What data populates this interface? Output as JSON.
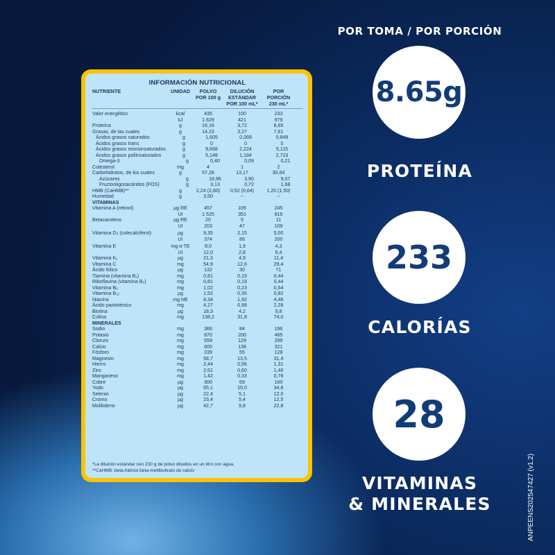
{
  "table": {
    "title": "INFORMACIÓN NUTRICIONAL",
    "headers": {
      "nutriente": "NUTRIENTE",
      "unidad": "UNIDAD",
      "polvo": [
        "POLVO",
        "POR 100 g"
      ],
      "dilucion": [
        "DILUCIÓN ESTÁNDAR",
        "POR 100 mL*"
      ],
      "porcion": [
        "POR PORCIÓN",
        "230 mL*"
      ]
    },
    "rows": [
      {
        "n": "Valor energético",
        "u": "kcal",
        "p": "435",
        "d": "100",
        "s": "233",
        "gap": true
      },
      {
        "n": "",
        "u": "kJ",
        "p": "1 829",
        "d": "421",
        "s": "979"
      },
      {
        "n": "Proteína",
        "u": "g",
        "p": "16,16",
        "d": "3,72",
        "s": "8,65"
      },
      {
        "n": "Grasas, de las cuales",
        "u": "g",
        "p": "14,23",
        "d": "3,27",
        "s": "7,61"
      },
      {
        "n": "Ácidos grasos saturados",
        "u": "g",
        "p": "1,605",
        "d": "0,369",
        "s": "0,849",
        "ind": 1
      },
      {
        "n": "Ácidos grasos trans",
        "u": "g",
        "p": "0",
        "d": "0",
        "s": "0",
        "ind": 1
      },
      {
        "n": "Ácidos grasos monoinsaturados",
        "u": "g",
        "p": "9,668",
        "d": "2,224",
        "s": "5,115",
        "ind": 1
      },
      {
        "n": "Ácidos grasos poliinsaturados",
        "u": "g",
        "p": "5,148",
        "d": "1,184",
        "s": "2,723",
        "ind": 1
      },
      {
        "n": "Omega-3",
        "u": "g",
        "p": "0,40",
        "d": "0,09",
        "s": "0,21",
        "ind": 2
      },
      {
        "n": "Colesterol",
        "u": "mg",
        "p": "4",
        "d": "1",
        "s": "2"
      },
      {
        "n": "Carbohidratos, de los cuales",
        "u": "g",
        "p": "57,28",
        "d": "13,17",
        "s": "30,64"
      },
      {
        "n": "Azúcares",
        "u": "g",
        "p": "16,96",
        "d": "3,90",
        "s": "9,07",
        "ind": 2
      },
      {
        "n": "Fructooligosacáridos (FOS)",
        "u": "g",
        "p": "3,13",
        "d": "0,72",
        "s": "1,68",
        "ind": 2
      },
      {
        "n": "HMB (CaHMB)**",
        "u": "g",
        "p": "2,24 (2,80)",
        "d": "0,52 (0,64)",
        "s": "1,20 (1,50)"
      },
      {
        "n": "Humedad",
        "u": "g",
        "p": "3,50",
        "d": "--",
        "s": "--"
      },
      {
        "n": "VITAMINAS",
        "u": "",
        "p": "",
        "d": "",
        "s": "",
        "sec": true
      },
      {
        "n": "Vitamina A (retinol)",
        "u": "µg RE",
        "p": "457",
        "d": "105",
        "s": "245"
      },
      {
        "n": "",
        "u": "UI",
        "p": "1 525",
        "d": "351",
        "s": "816"
      },
      {
        "n": "Betacaroteno",
        "u": "µg RE",
        "p": "20",
        "d": "5",
        "s": "11"
      },
      {
        "n": "",
        "u": "UI",
        "p": "203",
        "d": "47",
        "s": "109"
      },
      {
        "n": "Vitamina D₃ (colecalciferol)",
        "u": "µg",
        "p": "9,35",
        "d": "2,15",
        "s": "5,00",
        "gap": true
      },
      {
        "n": "",
        "u": "UI",
        "p": "374",
        "d": "86",
        "s": "200"
      },
      {
        "n": "Vitamina E",
        "u": "mg α-TE",
        "p": "8,0",
        "d": "1,9",
        "s": "4,3",
        "gap": true
      },
      {
        "n": "",
        "u": "UI",
        "p": "12,0",
        "d": "2,8",
        "s": "6,4"
      },
      {
        "n": "Vitamina K₁",
        "u": "µg",
        "p": "21,3",
        "d": "4,9",
        "s": "11,4"
      },
      {
        "n": "Vitamina C",
        "u": "mg",
        "p": "54,9",
        "d": "12,6",
        "s": "29,4"
      },
      {
        "n": "Ácido fólico",
        "u": "µg",
        "p": "132",
        "d": "30",
        "s": "71"
      },
      {
        "n": "Tiamina (vitamina B₁)",
        "u": "mg",
        "p": "0,81",
        "d": "0,19",
        "s": "0,44"
      },
      {
        "n": "Riboflavina (vitamina B₂)",
        "u": "mg",
        "p": "0,81",
        "d": "0,19",
        "s": "0,44"
      },
      {
        "n": "Vitamina B₆",
        "u": "mg",
        "p": "1,02",
        "d": "0,23",
        "s": "0,54"
      },
      {
        "n": "Vitamina B₁₂",
        "u": "µg",
        "p": "1,52",
        "d": "0,35",
        "s": "0,82"
      },
      {
        "n": "Niacina",
        "u": "mg NE",
        "p": "8,34",
        "d": "1,92",
        "s": "4,46"
      },
      {
        "n": "Ácido pantoténico",
        "u": "mg",
        "p": "4,27",
        "d": "0,98",
        "s": "2,28"
      },
      {
        "n": "Biotina",
        "u": "µg",
        "p": "18,3",
        "d": "4,2",
        "s": "9,8"
      },
      {
        "n": "Colina",
        "u": "mg",
        "p": "138,2",
        "d": "31,8",
        "s": "74,0"
      },
      {
        "n": "MINERALES",
        "u": "",
        "p": "",
        "d": "",
        "s": "",
        "sec": true
      },
      {
        "n": "Sodio",
        "u": "mg",
        "p": "366",
        "d": "84",
        "s": "196"
      },
      {
        "n": "Potasio",
        "u": "mg",
        "p": "870",
        "d": "200",
        "s": "465"
      },
      {
        "n": "Cloruro",
        "u": "mg",
        "p": "559",
        "d": "129",
        "s": "299"
      },
      {
        "n": "Calcio",
        "u": "mg",
        "p": "600",
        "d": "138",
        "s": "321"
      },
      {
        "n": "Fósforo",
        "u": "mg",
        "p": "239",
        "d": "55",
        "s": "128"
      },
      {
        "n": "Magnesio",
        "u": "mg",
        "p": "58,7",
        "d": "13,5",
        "s": "31,4"
      },
      {
        "n": "Hierro",
        "u": "mg",
        "p": "2,44",
        "d": "0,56",
        "s": "1,31"
      },
      {
        "n": "Zinc",
        "u": "mg",
        "p": "2,61",
        "d": "0,60",
        "s": "1,40"
      },
      {
        "n": "Manganeso",
        "u": "mg",
        "p": "1,42",
        "d": "0,33",
        "s": "0,76"
      },
      {
        "n": "Cobre",
        "u": "µg",
        "p": "300",
        "d": "69",
        "s": "160"
      },
      {
        "n": "Yodo",
        "u": "µg",
        "p": "65,1",
        "d": "15,0",
        "s": "34,8"
      },
      {
        "n": "Selenio",
        "u": "µg",
        "p": "22,4",
        "d": "5,1",
        "s": "12,0"
      },
      {
        "n": "Cromo",
        "u": "µg",
        "p": "23,4",
        "d": "5,4",
        "s": "12,5"
      },
      {
        "n": "Molibdeno",
        "u": "µg",
        "p": "42,7",
        "d": "9,8",
        "s": "22,8"
      }
    ],
    "footnotes": [
      "*La dilución estándar son 230 g de polvo diluidos en un litro con agua.",
      "**CaHMB: beta-hidroxi beta-metilbutirato de calcio"
    ]
  },
  "side": {
    "heading": "POR TOMA / POR PORCIÓN",
    "stats": [
      {
        "value": "8.65g",
        "label": "PROTEÍNA"
      },
      {
        "value": "233",
        "label": "CALORÍAS"
      },
      {
        "value": "28",
        "label": "VITAMINAS\n& MINERALES"
      }
    ]
  },
  "code": "ANPEENS202547427 (v1.2)",
  "colors": {
    "card_border": "#fbc300",
    "card_fill": "#bfe4f7",
    "text_navy": "#123c77"
  }
}
